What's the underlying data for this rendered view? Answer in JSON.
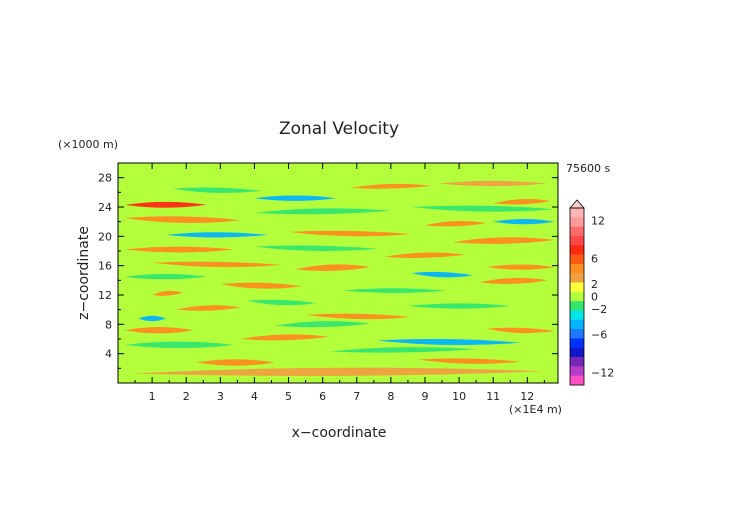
{
  "chart_data": {
    "type": "heatmap",
    "title": "Zonal Velocity",
    "xlabel": "x−coordinate",
    "ylabel": "z−coordinate",
    "x_unit": "(×1E4 m)",
    "y_unit": "(×1000 m)",
    "time_label": "75600 s",
    "xlim": [
      0,
      12.9
    ],
    "ylim": [
      0,
      30
    ],
    "x_ticks": [
      1,
      2,
      3,
      4,
      5,
      6,
      7,
      8,
      9,
      10,
      11,
      12
    ],
    "y_ticks": [
      4,
      8,
      12,
      16,
      20,
      24,
      28
    ],
    "colorbar": {
      "tick_labels": [
        "12",
        "6",
        "2",
        "0",
        "−2",
        "−6",
        "−12"
      ],
      "tick_values": [
        12,
        6,
        2,
        0,
        -2,
        -6,
        -12
      ],
      "levels": [
        {
          "value": 14,
          "color": "#ffb6b6"
        },
        {
          "value": 12,
          "color": "#ff9a9a"
        },
        {
          "value": 10,
          "color": "#ff6a6a"
        },
        {
          "value": 8,
          "color": "#ff4848"
        },
        {
          "value": 6,
          "color": "#ff2a14"
        },
        {
          "value": 4,
          "color": "#ff5a14"
        },
        {
          "value": 3,
          "color": "#ff8c1e"
        },
        {
          "value": 2,
          "color": "#f0a040"
        },
        {
          "value": 1,
          "color": "#ffff3a"
        },
        {
          "value": 0,
          "color": "#b4ff3c"
        },
        {
          "value": -1,
          "color": "#32e66e"
        },
        {
          "value": -2,
          "color": "#00e6e6"
        },
        {
          "value": -3,
          "color": "#00b4ff"
        },
        {
          "value": -4,
          "color": "#1e78ff"
        },
        {
          "value": -6,
          "color": "#0032ff"
        },
        {
          "value": -8,
          "color": "#1414c8"
        },
        {
          "value": -10,
          "color": "#7828b4"
        },
        {
          "value": -12,
          "color": "#b43cc8"
        },
        {
          "value": -14,
          "color": "#ff50c8"
        }
      ]
    },
    "bands": [
      {
        "z": 1.3,
        "x0": 0.4,
        "x1": 12.5,
        "v": 1.5,
        "w": 0.7
      },
      {
        "z": 2.8,
        "x0": 2.3,
        "x1": 4.6,
        "v": 3,
        "w": 0.55
      },
      {
        "z": 3.2,
        "x0": 8.8,
        "x1": 11.8,
        "v": 3,
        "w": 0.45
      },
      {
        "z": 4.3,
        "x0": 6.2,
        "x1": 10.5,
        "v": -1.5,
        "w": 0.45
      },
      {
        "z": 5.2,
        "x0": 0.2,
        "x1": 3.4,
        "v": -1.5,
        "w": 0.55
      },
      {
        "z": 5.8,
        "x0": 7.6,
        "x1": 11.8,
        "v": -3,
        "w": 0.5
      },
      {
        "z": 6.0,
        "x0": 3.6,
        "x1": 6.2,
        "v": 3,
        "w": 0.5
      },
      {
        "z": 7.2,
        "x0": 0.2,
        "x1": 2.2,
        "v": 3,
        "w": 0.55
      },
      {
        "z": 7.4,
        "x0": 10.8,
        "x1": 12.8,
        "v": 3,
        "w": 0.45
      },
      {
        "z": 7.8,
        "x0": 4.6,
        "x1": 7.4,
        "v": -1.5,
        "w": 0.5
      },
      {
        "z": 8.8,
        "x0": 0.6,
        "x1": 1.4,
        "v": -3,
        "w": 0.45
      },
      {
        "z": 9.3,
        "x0": 5.5,
        "x1": 8.6,
        "v": 3,
        "w": 0.45
      },
      {
        "z": 10.0,
        "x0": 1.7,
        "x1": 3.6,
        "v": 3,
        "w": 0.45
      },
      {
        "z": 10.5,
        "x0": 8.5,
        "x1": 11.5,
        "v": -1.5,
        "w": 0.45
      },
      {
        "z": 11.2,
        "x0": 3.8,
        "x1": 5.8,
        "v": -1.5,
        "w": 0.45
      },
      {
        "z": 12.0,
        "x0": 1.0,
        "x1": 1.9,
        "v": 3,
        "w": 0.4
      },
      {
        "z": 12.6,
        "x0": 6.6,
        "x1": 9.6,
        "v": -1.5,
        "w": 0.4
      },
      {
        "z": 13.5,
        "x0": 3.0,
        "x1": 5.4,
        "v": 3,
        "w": 0.5
      },
      {
        "z": 13.7,
        "x0": 10.6,
        "x1": 12.6,
        "v": 3,
        "w": 0.5
      },
      {
        "z": 14.5,
        "x0": 0.2,
        "x1": 2.6,
        "v": -1.5,
        "w": 0.45
      },
      {
        "z": 15.0,
        "x0": 8.6,
        "x1": 10.4,
        "v": -3,
        "w": 0.45
      },
      {
        "z": 15.5,
        "x0": 5.2,
        "x1": 7.4,
        "v": 3,
        "w": 0.55
      },
      {
        "z": 15.8,
        "x0": 10.8,
        "x1": 12.8,
        "v": 3,
        "w": 0.45
      },
      {
        "z": 16.4,
        "x0": 1.0,
        "x1": 4.8,
        "v": 3,
        "w": 0.45
      },
      {
        "z": 17.2,
        "x0": 7.8,
        "x1": 10.2,
        "v": 3,
        "w": 0.45
      },
      {
        "z": 18.2,
        "x0": 0.2,
        "x1": 3.4,
        "v": 3,
        "w": 0.5
      },
      {
        "z": 18.6,
        "x0": 4.0,
        "x1": 7.6,
        "v": -1.5,
        "w": 0.45
      },
      {
        "z": 19.2,
        "x0": 9.8,
        "x1": 12.8,
        "v": 3,
        "w": 0.55
      },
      {
        "z": 20.2,
        "x0": 1.4,
        "x1": 4.4,
        "v": -3,
        "w": 0.45
      },
      {
        "z": 20.6,
        "x0": 5.0,
        "x1": 8.6,
        "v": 3,
        "w": 0.45
      },
      {
        "z": 21.5,
        "x0": 9.0,
        "x1": 10.8,
        "v": 3,
        "w": 0.45
      },
      {
        "z": 22.0,
        "x0": 11.0,
        "x1": 12.8,
        "v": -3,
        "w": 0.45
      },
      {
        "z": 22.5,
        "x0": 0.2,
        "x1": 3.6,
        "v": 3,
        "w": 0.55
      },
      {
        "z": 23.2,
        "x0": 4.0,
        "x1": 8.0,
        "v": -1.5,
        "w": 0.5
      },
      {
        "z": 24.3,
        "x0": 0.2,
        "x1": 2.6,
        "v": 6,
        "w": 0.5
      },
      {
        "z": 24.0,
        "x0": 8.6,
        "x1": 12.8,
        "v": -1.5,
        "w": 0.5
      },
      {
        "z": 24.5,
        "x0": 11.0,
        "x1": 12.7,
        "v": 3,
        "w": 0.45
      },
      {
        "z": 25.2,
        "x0": 4.0,
        "x1": 6.4,
        "v": -3,
        "w": 0.45
      },
      {
        "z": 26.5,
        "x0": 1.6,
        "x1": 4.2,
        "v": -1.5,
        "w": 0.45
      },
      {
        "z": 26.6,
        "x0": 6.8,
        "x1": 9.2,
        "v": 3,
        "w": 0.4
      },
      {
        "z": 27.2,
        "x0": 9.4,
        "x1": 12.6,
        "v": 1.5,
        "w": 0.45
      }
    ]
  }
}
